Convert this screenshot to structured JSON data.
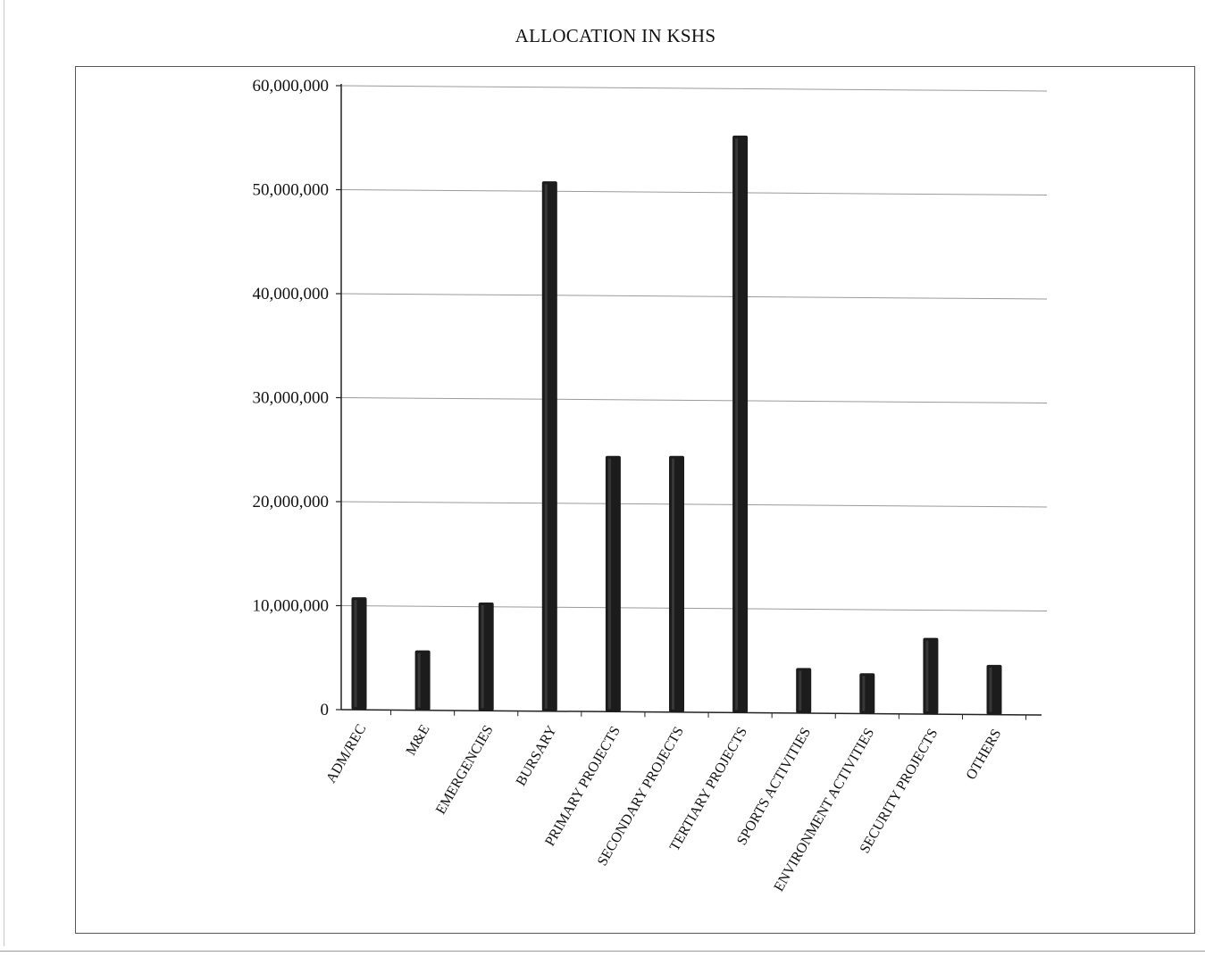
{
  "chart_data": {
    "type": "bar",
    "title": "ALLOCATION IN KSHS",
    "xlabel": "",
    "ylabel": "",
    "ylim": [
      0,
      60000000
    ],
    "yticks": [
      0,
      10000000,
      20000000,
      30000000,
      40000000,
      50000000,
      60000000
    ],
    "ytick_labels": [
      "0",
      "10,000,000",
      "20,000,000",
      "30,000,000",
      "40,000,000",
      "50,000,000",
      "60,000,000"
    ],
    "categories": [
      "ADM/REC",
      "M&E",
      "EMERGENCIES",
      "BURSARY",
      "PRIMARY PROJECTS",
      "SECONDARY PROJECTS",
      "TERTIARY PROJECTS",
      "SPORTS ACTIVITIES",
      "ENVIRONMENT ACTIVITIES",
      "SECURITY PROJECTS",
      "OTHERS"
    ],
    "values": [
      10800000,
      5700000,
      10300000,
      50800000,
      24400000,
      24400000,
      55200000,
      4000000,
      3500000,
      6900000,
      4300000
    ],
    "grid": true,
    "legend": "none",
    "colors": {
      "bar": "#1c1c1c",
      "bar_highlight": "#4a4a4a",
      "grid": "#9a9a9a",
      "axis": "#222222"
    }
  }
}
